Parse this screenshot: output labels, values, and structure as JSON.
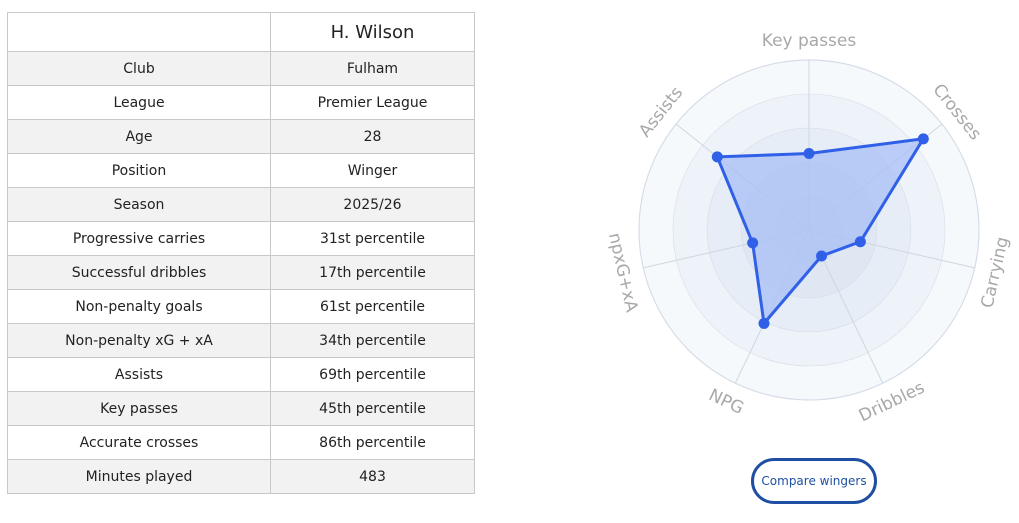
{
  "player": {
    "name": "H. Wilson"
  },
  "table": {
    "rows": [
      {
        "label": "Club",
        "value": "Fulham",
        "style": "link"
      },
      {
        "label": "League",
        "value": "Premier League",
        "style": "plain"
      },
      {
        "label": "Age",
        "value": "28",
        "style": "plain"
      },
      {
        "label": "Position",
        "value": "Winger",
        "style": "link"
      },
      {
        "label": "Season",
        "value": "2025/26",
        "style": "plain"
      },
      {
        "label": "Progressive carries",
        "value": "31st percentile",
        "style": "pct-blue"
      },
      {
        "label": "Successful dribbles",
        "value": "17th percentile",
        "style": "pct-red"
      },
      {
        "label": "Non-penalty goals",
        "value": "61st percentile",
        "style": "pct-blue"
      },
      {
        "label": "Non-penalty xG + xA",
        "value": "34th percentile",
        "style": "pct-blue"
      },
      {
        "label": "Assists",
        "value": "69th percentile",
        "style": "pct-blue"
      },
      {
        "label": "Key passes",
        "value": "45th percentile",
        "style": "pct-blue"
      },
      {
        "label": "Accurate crosses",
        "value": "86th percentile",
        "style": "pct-green"
      },
      {
        "label": "Minutes played",
        "value": "483",
        "style": "plain"
      }
    ]
  },
  "chart_data": {
    "type": "radar",
    "axes": [
      "Key passes",
      "Crosses",
      "Carrying",
      "Dribbles",
      "NPG",
      "npxG+xA",
      "Assists"
    ],
    "values": [
      45,
      86,
      31,
      17,
      61,
      34,
      69
    ],
    "range": [
      0,
      100
    ],
    "fill_color": "#a8bff5",
    "line_color": "#3060e8",
    "ring_colors": [
      "#f6f9fc",
      "#eef3f9",
      "#e6edf6",
      "#dfe7f3",
      "#d8e2f0"
    ]
  },
  "compare_button": {
    "label": "Compare wingers"
  }
}
